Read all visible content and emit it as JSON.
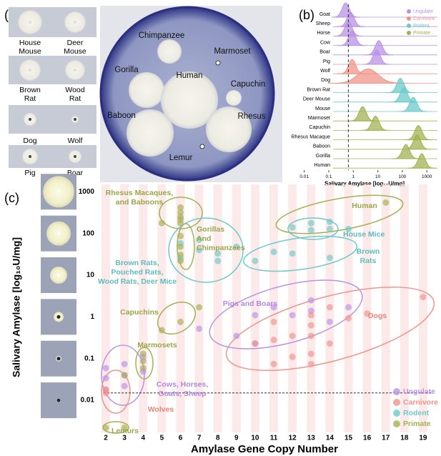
{
  "panel_a": {
    "label": "(a)",
    "small_plates": [
      {
        "left": [
          "House",
          "Mouse"
        ],
        "right": [
          "Deer",
          "Mouse"
        ]
      },
      {
        "left": [
          "Brown",
          "Rat"
        ],
        "right": [
          "Wood",
          "Rat"
        ]
      },
      {
        "left": [
          "Dog"
        ],
        "right": [
          "Wolf"
        ]
      },
      {
        "left": [
          "Pig"
        ],
        "right": [
          "Boar"
        ]
      }
    ],
    "big_plate": [
      "Chimpanzee",
      "Marmoset",
      "Gorilla",
      "Human",
      "Capuchin",
      "Baboon",
      "Rhesus",
      "Lemur"
    ]
  },
  "chart_data": [
    {
      "type": "ridgeline",
      "label": "(b)",
      "x_label": "Salivary Amylase [log₁₀U/mg]",
      "log_x": true,
      "xlim": [
        0.004,
        2700
      ],
      "xticks": [
        0.01,
        0.1,
        1,
        10,
        100,
        1000
      ],
      "vline": 0.63,
      "series": [
        {
          "name": "Ungulate",
          "color": "#b992e6",
          "categories": [
            "Goat",
            "Sheep",
            "Horse",
            "Cow",
            "Boar",
            "Pig"
          ],
          "values": [
            0.49,
            0.78,
            0.63,
            0.9,
            11,
            9
          ]
        },
        {
          "name": "Carnivore",
          "color": "#f0948a",
          "categories": [
            "Wolf",
            "Dog"
          ],
          "values": [
            0.9,
            4
          ]
        },
        {
          "name": "Rodent",
          "color": "#6ccac9",
          "categories": [
            "Brown Rat",
            "Deer Mouse",
            "Mouse"
          ],
          "values": [
            83,
            115,
            280
          ]
        },
        {
          "name": "Primate",
          "color": "#a3b152",
          "categories": [
            "Marmoset",
            "Capuchin",
            "Rhesus Macaque",
            "Baboon",
            "Gorilla",
            "Human"
          ],
          "values": [
            2.4,
            8,
            450,
            400,
            140,
            620
          ]
        }
      ]
    },
    {
      "type": "scatter",
      "label": "(c)",
      "x_label": "Amylase Gene Copy Number",
      "y_label": "Salivary Amylase [log₁₀U/mg]",
      "xlim": [
        1.5,
        19.5
      ],
      "xticks": [
        2,
        3,
        4,
        5,
        6,
        7,
        8,
        9,
        10,
        11,
        12,
        13,
        14,
        15,
        16,
        17,
        18,
        19
      ],
      "log_y": true,
      "ylim": [
        0.0017,
        1500
      ],
      "yticks": [
        1000,
        100,
        10,
        1,
        0.1,
        0.01
      ],
      "hline": 0.015,
      "series": [
        {
          "name": "Ungulate",
          "color": "#b992e6",
          "x": [
            10,
            11,
            12,
            13,
            13,
            15,
            14,
            2,
            2,
            3,
            3,
            3,
            2,
            4,
            4,
            7,
            10,
            9
          ],
          "values": [
            1.1,
            1.7,
            1.1,
            2.5,
            1.4,
            1.7,
            0.76,
            0.059,
            0.034,
            0.074,
            0.04,
            0.022,
            0.018,
            0.11,
            0.049,
            0.52,
            0.23,
            0.35
          ]
        },
        {
          "name": "Carnivore",
          "color": "#f0948a",
          "x": [
            11,
            11,
            12,
            13,
            13,
            13,
            13,
            14,
            14,
            15,
            16,
            19,
            11,
            12,
            10,
            13,
            2,
            2
          ],
          "values": [
            0.76,
            0.28,
            0.35,
            1.1,
            0.63,
            0.35,
            0.13,
            1.7,
            0.23,
            0.93,
            1.2,
            3.0,
            0.074,
            0.11,
            0.23,
            0.074,
            0.018,
            0.015
          ]
        },
        {
          "name": "Rodent",
          "color": "#6ccac9",
          "x": [
            12,
            13,
            13,
            14,
            14,
            15,
            6,
            7,
            7,
            8,
            8,
            9,
            10,
            11,
            12,
            14,
            6
          ],
          "values": [
            140,
            177,
            120,
            128,
            190,
            128,
            58,
            71,
            40,
            33,
            22,
            48,
            22,
            36,
            33,
            26,
            26
          ]
        },
        {
          "name": "Primate",
          "color": "#a3b152",
          "x": [
            6,
            6,
            6,
            6,
            6,
            5,
            6,
            6,
            6,
            6,
            6,
            7,
            5,
            4,
            4,
            4,
            2,
            3,
            17,
            3
          ],
          "values": [
            420,
            318,
            250,
            215,
            177,
            177,
            87,
            48,
            31,
            22,
            0.76,
            1.7,
            0.48,
            0.13,
            0.087,
            0.059,
            0.0022,
            0.0022,
            550,
            0.04
          ]
        }
      ],
      "annotations": [
        {
          "text": [
            "Rhesus Macaques,",
            "and Baboons"
          ],
          "color": "#9aa648"
        },
        {
          "text": [
            "Gorillas",
            "And",
            "Chimpanzees"
          ],
          "color": "#9aa648"
        },
        {
          "text": [
            "Brown Rats,",
            "Pouched Rats,",
            "Wood Rats, Deer Mice"
          ],
          "color": "#5fbcbc"
        },
        {
          "text": [
            "Human"
          ],
          "color": "#9aa648"
        },
        {
          "text": [
            "House Mice"
          ],
          "color": "#5fbcbc"
        },
        {
          "text": [
            "Brown",
            "Rats"
          ],
          "color": "#5fbcbc"
        },
        {
          "text": [
            "Pigs and Boars"
          ],
          "color": "#b288e2"
        },
        {
          "text": [
            "Dogs"
          ],
          "color": "#ec8378"
        },
        {
          "text": [
            "Capuchins"
          ],
          "color": "#9aa648"
        },
        {
          "text": [
            "Marmosets"
          ],
          "color": "#9aa648"
        },
        {
          "text": [
            "Cows, Horses,",
            "Goats, Sheep"
          ],
          "color": "#b288e2"
        },
        {
          "text": [
            "Wolves"
          ],
          "color": "#ec8378"
        },
        {
          "text": [
            "Lemurs"
          ],
          "color": "#9aa648"
        }
      ]
    }
  ]
}
